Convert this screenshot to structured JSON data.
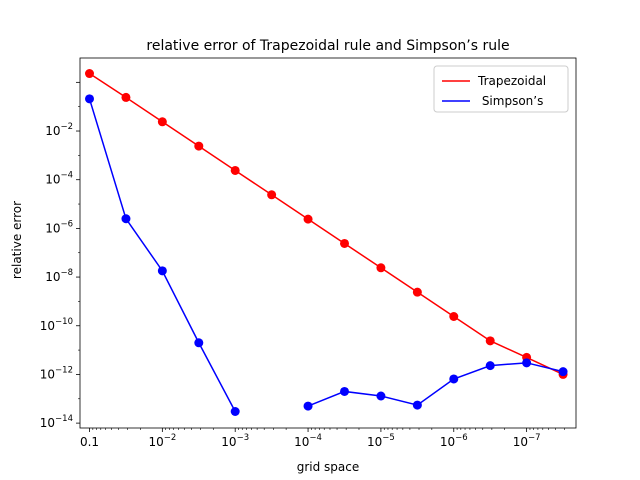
{
  "chart_data": {
    "type": "line",
    "title": "relative error of  Trapezoidal rule and  Simpson’s rule",
    "xlabel": "grid space",
    "ylabel": "relative error",
    "x_scale": "log",
    "x_inverted": true,
    "y_scale": "log",
    "xlim": [
      0.135,
      2.1e-08
    ],
    "ylim": [
      6.3e-15,
      10.0
    ],
    "x_ticks": [
      {
        "value": 0.1,
        "base": "0.1",
        "exp": ""
      },
      {
        "value": 0.01,
        "base": "10",
        "exp": "−2"
      },
      {
        "value": 0.001,
        "base": "10",
        "exp": "−3"
      },
      {
        "value": 0.0001,
        "base": "10",
        "exp": "−4"
      },
      {
        "value": 1e-05,
        "base": "10",
        "exp": "−5"
      },
      {
        "value": 1e-06,
        "base": "10",
        "exp": "−6"
      },
      {
        "value": 1e-07,
        "base": "10",
        "exp": "−7"
      }
    ],
    "y_ticks": [
      {
        "value": 1e-14,
        "base": "10",
        "exp": "−14"
      },
      {
        "value": 1e-12,
        "base": "10",
        "exp": "−12"
      },
      {
        "value": 1e-10,
        "base": "10",
        "exp": "−10"
      },
      {
        "value": 1e-08,
        "base": "10",
        "exp": "−8"
      },
      {
        "value": 1e-06,
        "base": "10",
        "exp": "−6"
      },
      {
        "value": 0.0001,
        "base": "10",
        "exp": "−4"
      },
      {
        "value": 0.01,
        "base": "10",
        "exp": "−2"
      },
      {
        "value": 1,
        "base": "",
        "exp": ""
      }
    ],
    "grid": false,
    "legend_position": "top-right",
    "series": [
      {
        "name": "Trapezoidal",
        "color": "#ff0000",
        "points": [
          [
            0.1,
            2.3
          ],
          [
            0.0316,
            0.24
          ],
          [
            0.01,
            0.024
          ],
          [
            0.00316,
            0.0024
          ],
          [
            0.001,
            0.00024
          ],
          [
            0.000316,
            2.4e-05
          ],
          [
            0.0001,
            2.4e-06
          ],
          [
            3.16e-05,
            2.4e-07
          ],
          [
            1e-05,
            2.4e-08
          ],
          [
            3.16e-06,
            2.4e-09
          ],
          [
            1e-06,
            2.4e-10
          ],
          [
            3.16e-07,
            2.4e-11
          ],
          [
            1e-07,
            5e-12
          ],
          [
            3.16e-08,
            1e-12
          ]
        ]
      },
      {
        "name": " Simpson’s",
        "color": "#0000ff",
        "segments": [
          [
            [
              0.1,
              0.21
            ],
            [
              0.0316,
              2.5e-06
            ],
            [
              0.01,
              1.8e-08
            ],
            [
              0.00316,
              2e-11
            ],
            [
              0.001,
              3e-14
            ]
          ],
          [
            [
              0.0001,
              5e-14
            ],
            [
              3.16e-05,
              2e-13
            ],
            [
              1e-05,
              1.3e-13
            ],
            [
              3.16e-06,
              5.5e-14
            ],
            [
              1e-06,
              6.5e-13
            ],
            [
              3.16e-07,
              2.3e-12
            ],
            [
              1e-07,
              3e-12
            ],
            [
              3.16e-08,
              1.3e-12
            ]
          ]
        ]
      }
    ]
  }
}
